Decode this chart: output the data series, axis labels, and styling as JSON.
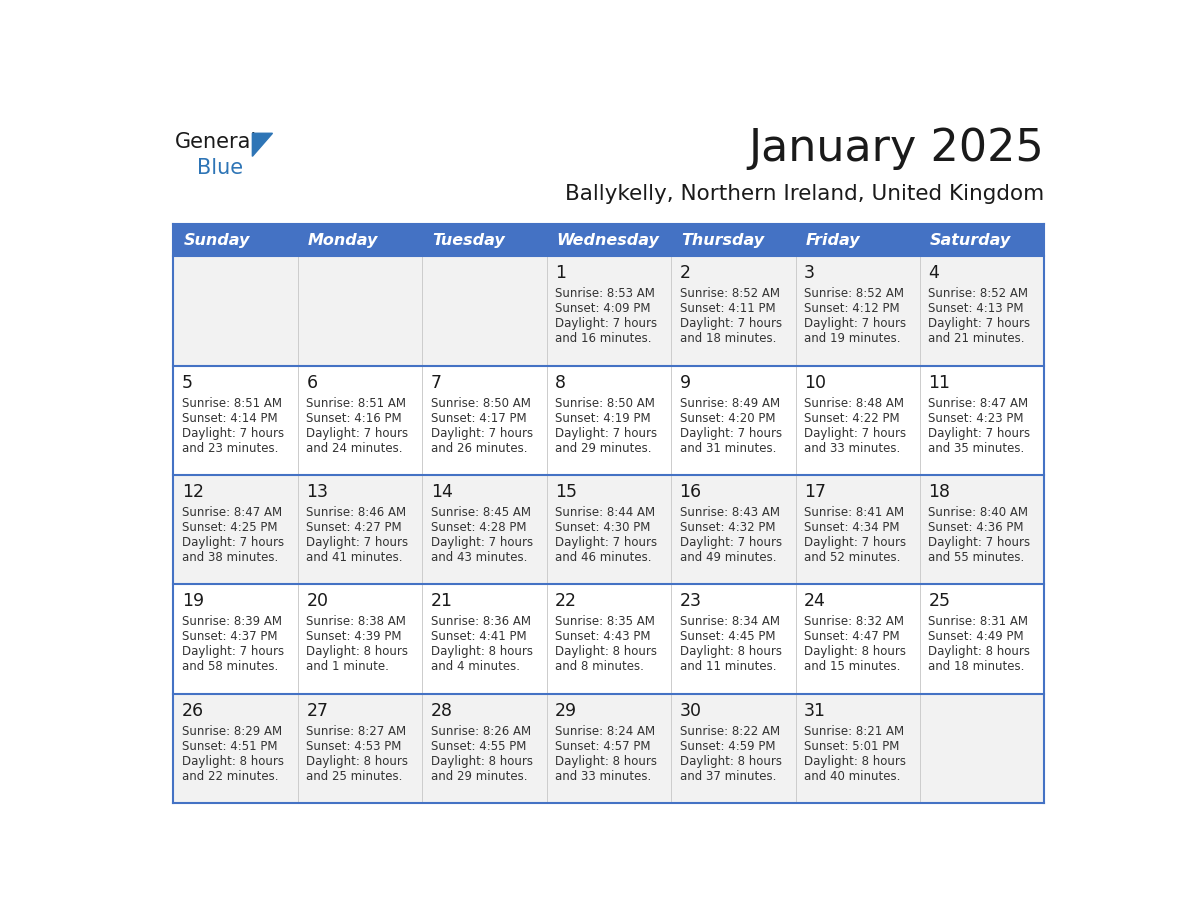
{
  "title": "January 2025",
  "subtitle": "Ballykelly, Northern Ireland, United Kingdom",
  "days_of_week": [
    "Sunday",
    "Monday",
    "Tuesday",
    "Wednesday",
    "Thursday",
    "Friday",
    "Saturday"
  ],
  "header_bg": "#4472C4",
  "header_text": "#FFFFFF",
  "row_bg_light": "#F2F2F2",
  "row_bg_white": "#FFFFFF",
  "border_color": "#4472C4",
  "inner_border_color": "#4472C4",
  "title_color": "#1a1a1a",
  "subtitle_color": "#1a1a1a",
  "cell_text_color": "#333333",
  "day_num_color": "#1a1a1a",
  "logo_black": "#1a1a1a",
  "logo_blue": "#2E75B6",
  "calendar_data": [
    [
      {
        "day": "",
        "sunrise": "",
        "sunset": "",
        "daylight": ""
      },
      {
        "day": "",
        "sunrise": "",
        "sunset": "",
        "daylight": ""
      },
      {
        "day": "",
        "sunrise": "",
        "sunset": "",
        "daylight": ""
      },
      {
        "day": "1",
        "sunrise": "8:53 AM",
        "sunset": "4:09 PM",
        "daylight_line1": "Daylight: 7 hours",
        "daylight_line2": "and 16 minutes."
      },
      {
        "day": "2",
        "sunrise": "8:52 AM",
        "sunset": "4:11 PM",
        "daylight_line1": "Daylight: 7 hours",
        "daylight_line2": "and 18 minutes."
      },
      {
        "day": "3",
        "sunrise": "8:52 AM",
        "sunset": "4:12 PM",
        "daylight_line1": "Daylight: 7 hours",
        "daylight_line2": "and 19 minutes."
      },
      {
        "day": "4",
        "sunrise": "8:52 AM",
        "sunset": "4:13 PM",
        "daylight_line1": "Daylight: 7 hours",
        "daylight_line2": "and 21 minutes."
      }
    ],
    [
      {
        "day": "5",
        "sunrise": "8:51 AM",
        "sunset": "4:14 PM",
        "daylight_line1": "Daylight: 7 hours",
        "daylight_line2": "and 23 minutes."
      },
      {
        "day": "6",
        "sunrise": "8:51 AM",
        "sunset": "4:16 PM",
        "daylight_line1": "Daylight: 7 hours",
        "daylight_line2": "and 24 minutes."
      },
      {
        "day": "7",
        "sunrise": "8:50 AM",
        "sunset": "4:17 PM",
        "daylight_line1": "Daylight: 7 hours",
        "daylight_line2": "and 26 minutes."
      },
      {
        "day": "8",
        "sunrise": "8:50 AM",
        "sunset": "4:19 PM",
        "daylight_line1": "Daylight: 7 hours",
        "daylight_line2": "and 29 minutes."
      },
      {
        "day": "9",
        "sunrise": "8:49 AM",
        "sunset": "4:20 PM",
        "daylight_line1": "Daylight: 7 hours",
        "daylight_line2": "and 31 minutes."
      },
      {
        "day": "10",
        "sunrise": "8:48 AM",
        "sunset": "4:22 PM",
        "daylight_line1": "Daylight: 7 hours",
        "daylight_line2": "and 33 minutes."
      },
      {
        "day": "11",
        "sunrise": "8:47 AM",
        "sunset": "4:23 PM",
        "daylight_line1": "Daylight: 7 hours",
        "daylight_line2": "and 35 minutes."
      }
    ],
    [
      {
        "day": "12",
        "sunrise": "8:47 AM",
        "sunset": "4:25 PM",
        "daylight_line1": "Daylight: 7 hours",
        "daylight_line2": "and 38 minutes."
      },
      {
        "day": "13",
        "sunrise": "8:46 AM",
        "sunset": "4:27 PM",
        "daylight_line1": "Daylight: 7 hours",
        "daylight_line2": "and 41 minutes."
      },
      {
        "day": "14",
        "sunrise": "8:45 AM",
        "sunset": "4:28 PM",
        "daylight_line1": "Daylight: 7 hours",
        "daylight_line2": "and 43 minutes."
      },
      {
        "day": "15",
        "sunrise": "8:44 AM",
        "sunset": "4:30 PM",
        "daylight_line1": "Daylight: 7 hours",
        "daylight_line2": "and 46 minutes."
      },
      {
        "day": "16",
        "sunrise": "8:43 AM",
        "sunset": "4:32 PM",
        "daylight_line1": "Daylight: 7 hours",
        "daylight_line2": "and 49 minutes."
      },
      {
        "day": "17",
        "sunrise": "8:41 AM",
        "sunset": "4:34 PM",
        "daylight_line1": "Daylight: 7 hours",
        "daylight_line2": "and 52 minutes."
      },
      {
        "day": "18",
        "sunrise": "8:40 AM",
        "sunset": "4:36 PM",
        "daylight_line1": "Daylight: 7 hours",
        "daylight_line2": "and 55 minutes."
      }
    ],
    [
      {
        "day": "19",
        "sunrise": "8:39 AM",
        "sunset": "4:37 PM",
        "daylight_line1": "Daylight: 7 hours",
        "daylight_line2": "and 58 minutes."
      },
      {
        "day": "20",
        "sunrise": "8:38 AM",
        "sunset": "4:39 PM",
        "daylight_line1": "Daylight: 8 hours",
        "daylight_line2": "and 1 minute."
      },
      {
        "day": "21",
        "sunrise": "8:36 AM",
        "sunset": "4:41 PM",
        "daylight_line1": "Daylight: 8 hours",
        "daylight_line2": "and 4 minutes."
      },
      {
        "day": "22",
        "sunrise": "8:35 AM",
        "sunset": "4:43 PM",
        "daylight_line1": "Daylight: 8 hours",
        "daylight_line2": "and 8 minutes."
      },
      {
        "day": "23",
        "sunrise": "8:34 AM",
        "sunset": "4:45 PM",
        "daylight_line1": "Daylight: 8 hours",
        "daylight_line2": "and 11 minutes."
      },
      {
        "day": "24",
        "sunrise": "8:32 AM",
        "sunset": "4:47 PM",
        "daylight_line1": "Daylight: 8 hours",
        "daylight_line2": "and 15 minutes."
      },
      {
        "day": "25",
        "sunrise": "8:31 AM",
        "sunset": "4:49 PM",
        "daylight_line1": "Daylight: 8 hours",
        "daylight_line2": "and 18 minutes."
      }
    ],
    [
      {
        "day": "26",
        "sunrise": "8:29 AM",
        "sunset": "4:51 PM",
        "daylight_line1": "Daylight: 8 hours",
        "daylight_line2": "and 22 minutes."
      },
      {
        "day": "27",
        "sunrise": "8:27 AM",
        "sunset": "4:53 PM",
        "daylight_line1": "Daylight: 8 hours",
        "daylight_line2": "and 25 minutes."
      },
      {
        "day": "28",
        "sunrise": "8:26 AM",
        "sunset": "4:55 PM",
        "daylight_line1": "Daylight: 8 hours",
        "daylight_line2": "and 29 minutes."
      },
      {
        "day": "29",
        "sunrise": "8:24 AM",
        "sunset": "4:57 PM",
        "daylight_line1": "Daylight: 8 hours",
        "daylight_line2": "and 33 minutes."
      },
      {
        "day": "30",
        "sunrise": "8:22 AM",
        "sunset": "4:59 PM",
        "daylight_line1": "Daylight: 8 hours",
        "daylight_line2": "and 37 minutes."
      },
      {
        "day": "31",
        "sunrise": "8:21 AM",
        "sunset": "5:01 PM",
        "daylight_line1": "Daylight: 8 hours",
        "daylight_line2": "and 40 minutes."
      },
      {
        "day": "",
        "sunrise": "",
        "sunset": "",
        "daylight_line1": "",
        "daylight_line2": ""
      }
    ]
  ]
}
